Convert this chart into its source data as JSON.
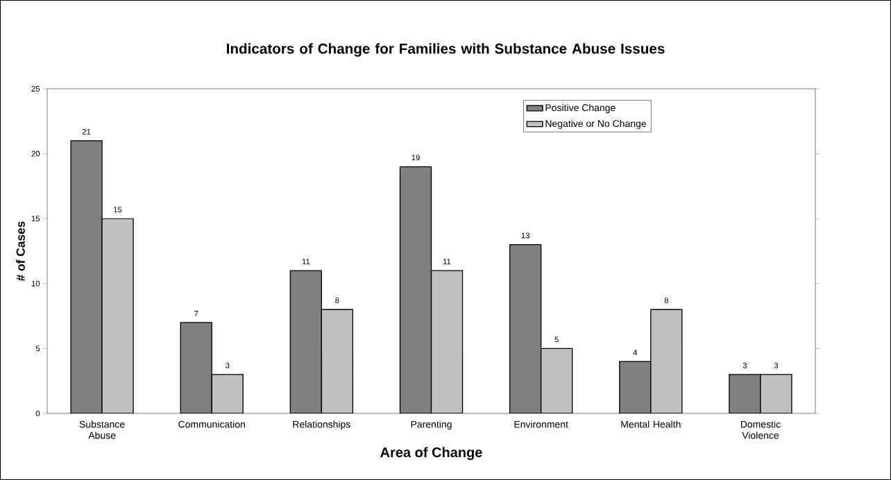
{
  "chart_data": {
    "type": "bar",
    "title": "Indicators of Change for Families with Substance Abuse Issues",
    "xlabel": "Area of Change",
    "ylabel": "# of Cases",
    "categories": [
      "Substance Abuse",
      "Communication",
      "Relationships",
      "Parenting",
      "Environment",
      "Mental Health",
      "Domestic Violence"
    ],
    "series": [
      {
        "name": "Positive Change",
        "color": "#808080",
        "values": [
          21,
          7,
          11,
          19,
          13,
          4,
          3
        ]
      },
      {
        "name": "Negative or No Change",
        "color": "#c0c0c0",
        "values": [
          15,
          3,
          8,
          11,
          5,
          8,
          3
        ]
      }
    ],
    "ylim": [
      0,
      25
    ],
    "yticks": [
      0,
      5,
      10,
      15,
      20,
      25
    ],
    "data_labels": true,
    "legend": "top right"
  }
}
